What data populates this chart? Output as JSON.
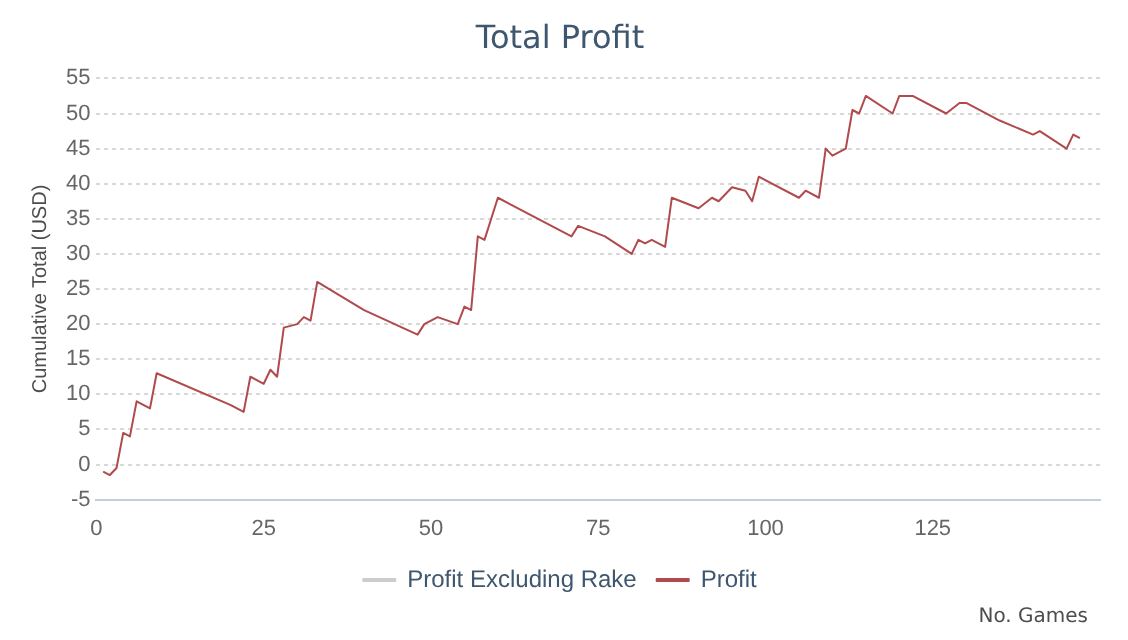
{
  "chart_data": {
    "type": "line",
    "title": "Total Profit",
    "xlabel": "No. Games",
    "ylabel": "Cumulative Total (USD)",
    "x": [
      1,
      2,
      3,
      4,
      5,
      6,
      8,
      9,
      20,
      22,
      23,
      25,
      26,
      27,
      28,
      30,
      31,
      32,
      33,
      40,
      48,
      49,
      51,
      54,
      55,
      56,
      57,
      58,
      60,
      65,
      71,
      72,
      76,
      80,
      81,
      82,
      83,
      85,
      86,
      90,
      92,
      93,
      95,
      97,
      98,
      99,
      105,
      106,
      108,
      109,
      110,
      112,
      113,
      114,
      115,
      119,
      120,
      122,
      127,
      129,
      130,
      135,
      140,
      141,
      145,
      146,
      147
    ],
    "series": [
      {
        "name": "Profit Excluding Rake",
        "color": "#cccccc",
        "values": [
          null,
          null,
          null,
          null,
          null,
          null,
          null,
          null,
          null,
          null,
          null,
          null,
          null,
          null,
          null,
          null,
          null,
          null,
          null,
          null,
          null,
          null,
          null,
          null,
          null,
          null,
          null,
          null,
          null,
          null,
          null,
          null,
          null,
          null,
          null,
          null,
          null,
          null,
          null,
          null,
          null,
          null,
          null,
          null,
          null,
          null,
          null,
          null,
          null,
          null,
          null,
          null,
          null,
          null,
          null,
          null,
          null,
          null,
          null,
          null,
          null,
          null,
          null,
          null,
          null,
          null,
          null
        ]
      },
      {
        "name": "Profit",
        "color": "#b04a4c",
        "values": [
          -1,
          -1.5,
          -0.5,
          4.5,
          4,
          9,
          8,
          13,
          8.5,
          7.5,
          12.5,
          11.5,
          13.5,
          12.5,
          19.5,
          20,
          21,
          20.5,
          26,
          22,
          18.5,
          20,
          21,
          20,
          22.5,
          22,
          32.5,
          32,
          38,
          35.5,
          32.5,
          34,
          32.5,
          30,
          32,
          31.5,
          32,
          31,
          38,
          36.5,
          38,
          37.5,
          39.5,
          39,
          37.5,
          41,
          38,
          39,
          38,
          45,
          44,
          45,
          50.5,
          50,
          52.5,
          50,
          52.5,
          52.5,
          50,
          51.5,
          51.5,
          49,
          47,
          47.5,
          45,
          47,
          46.5
        ]
      }
    ],
    "xlim": [
      0,
      150
    ],
    "xticks": [
      0,
      25,
      50,
      75,
      100,
      125
    ],
    "ylim": [
      -5,
      55
    ],
    "yticks": [
      -5,
      0,
      5,
      10,
      15,
      20,
      25,
      30,
      35,
      40,
      45,
      50,
      55
    ],
    "grid": "y",
    "legend": "bottom",
    "marker": "none",
    "line_style": "solid"
  }
}
